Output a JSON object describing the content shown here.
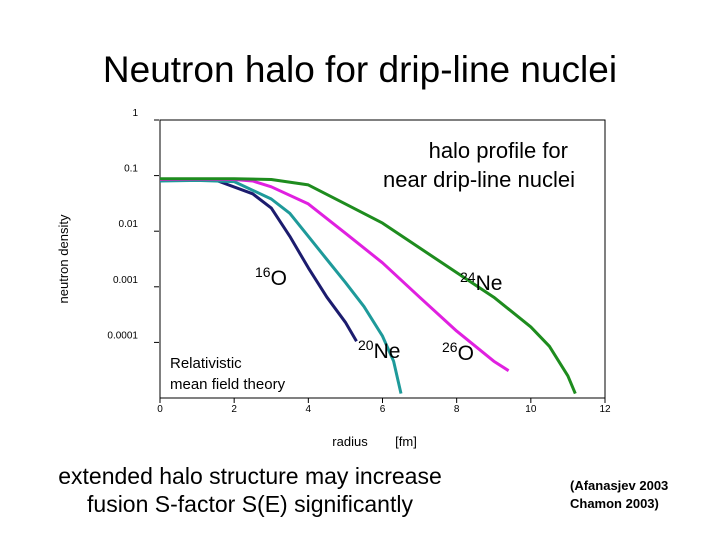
{
  "title": "Neutron halo for drip-line nuclei",
  "chart_data": {
    "type": "line",
    "ylabel": "neutron density",
    "xlabel": [
      "radius",
      "[fm]"
    ],
    "ylog": true,
    "xlim": [
      0,
      12
    ],
    "xticks": [
      0,
      2,
      4,
      6,
      8,
      10,
      12
    ],
    "ylim": [
      1e-05,
      1
    ],
    "yticks": [
      1,
      0.1,
      0.01,
      0.001,
      0.0001
    ],
    "series": [
      {
        "color": "#1c1c6e",
        "x": [
          0,
          1,
          1.5,
          2.5,
          3,
          3.5,
          4,
          4.5,
          5,
          5.3
        ],
        "values": [
          0.085,
          0.085,
          0.083,
          0.047,
          0.026,
          0.0081,
          0.0022,
          0.00065,
          0.00023,
          0.000105
        ]
      },
      {
        "color": "#1e9a9a",
        "x": [
          0,
          1,
          2,
          3,
          3.5,
          4,
          4.5,
          5,
          5.5,
          6,
          6.3,
          6.5
        ],
        "values": [
          0.08,
          0.082,
          0.078,
          0.038,
          0.021,
          0.0081,
          0.0031,
          0.0012,
          0.00044,
          0.00013,
          4.6e-05,
          1.2e-05
        ]
      },
      {
        "color": "#e020e0",
        "x": [
          0,
          1,
          2,
          2.5,
          3,
          4,
          5,
          6,
          7,
          8,
          9,
          9.4
        ],
        "values": [
          0.085,
          0.086,
          0.085,
          0.08,
          0.063,
          0.031,
          0.0092,
          0.0027,
          0.00065,
          0.00016,
          4.6e-05,
          3.1e-05
        ]
      },
      {
        "color": "#1e8c1e",
        "x": [
          0,
          1,
          2,
          3,
          4,
          5,
          6,
          7,
          8,
          9,
          10,
          10.5,
          11,
          11.2
        ],
        "values": [
          0.088,
          0.088,
          0.088,
          0.085,
          0.068,
          0.031,
          0.014,
          0.005,
          0.0018,
          0.00065,
          0.00019,
          8.5e-05,
          2.5e-05,
          1.2e-05
        ]
      }
    ],
    "annotations": [
      "halo profile for",
      "near drip-line nuclei",
      "Relativistic",
      "mean field theory"
    ],
    "isotopes": [
      {
        "mass": "16",
        "symbol": "O"
      },
      {
        "mass": "24",
        "symbol": "Ne"
      },
      {
        "mass": "20",
        "symbol": "Ne"
      },
      {
        "mass": "26",
        "symbol": "O"
      }
    ]
  },
  "footer": {
    "lines": [
      "extended halo structure may increase",
      "fusion S-factor S(E) significantly"
    ],
    "citation": [
      "(Afanasjev 2003",
      "Chamon 2003)"
    ]
  }
}
